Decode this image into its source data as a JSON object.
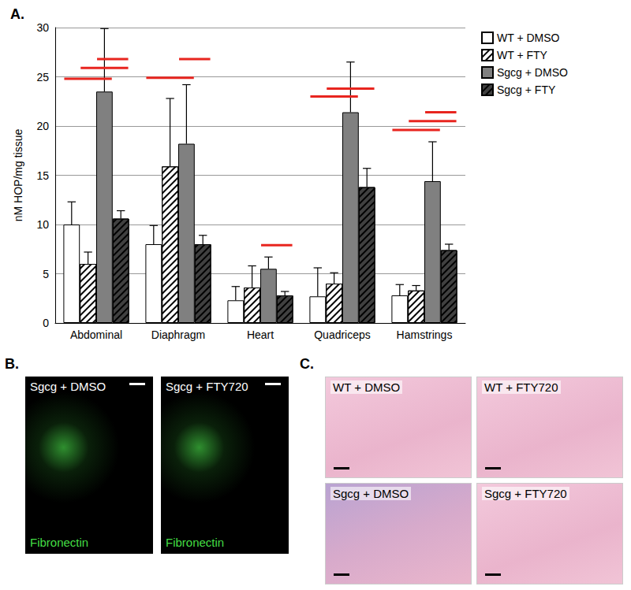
{
  "chart_data": {
    "type": "bar",
    "title": "A.",
    "ylabel": "nM HOP/mg tissue",
    "categories": [
      "Abdominal",
      "Diaphragm",
      "Heart",
      "Quadriceps",
      "Hamstrings"
    ],
    "series": [
      {
        "name": "WT + DMSO",
        "color": "#ffffff",
        "marker": "solid",
        "values": [
          10,
          8,
          2.3,
          2.7,
          2.8
        ],
        "errors": [
          2.3,
          1.9,
          1.4,
          2.9,
          1.1
        ]
      },
      {
        "name": "WT + FTY",
        "color": "#ffffff",
        "marker": "hatched",
        "values": [
          6,
          15.9,
          3.6,
          4,
          3.3
        ],
        "errors": [
          1.2,
          6.9,
          2.2,
          1.1,
          0.5
        ]
      },
      {
        "name": "Sgcg + DMSO",
        "color": "#808080",
        "marker": "solid",
        "values": [
          23.5,
          18.2,
          5.5,
          21.4,
          14.4
        ],
        "errors": [
          6.4,
          6,
          1.2,
          5.1,
          4
        ]
      },
      {
        "name": "Sgcg + FTY",
        "color": "#404040",
        "marker": "hatched",
        "values": [
          10.6,
          8,
          2.8,
          13.8,
          7.4
        ],
        "errors": [
          0.8,
          0.9,
          0.4,
          1.9,
          0.6
        ]
      }
    ],
    "ylim": [
      0,
      30
    ],
    "yticks": [
      0,
      5,
      10,
      15,
      20,
      25,
      30
    ],
    "grid": true,
    "legend": "right",
    "significance": [
      {
        "category": "Abdominal",
        "from": "WT + DMSO",
        "to": "Sgcg + DMSO",
        "y": 24.8
      },
      {
        "category": "Abdominal",
        "from": "WT + FTY",
        "to": "Sgcg + FTY",
        "y": 25.9
      },
      {
        "category": "Abdominal",
        "from": "Sgcg + DMSO",
        "to": "Sgcg + FTY",
        "y": 26.8
      },
      {
        "category": "Diaphragm",
        "from": "WT + DMSO",
        "to": "Sgcg + DMSO",
        "y": 24.9
      },
      {
        "category": "Diaphragm",
        "from": "Sgcg + DMSO",
        "to": "Sgcg + FTY",
        "y": 26.8
      },
      {
        "category": "Heart",
        "from": "Sgcg + DMSO",
        "to": "Sgcg + FTY",
        "y": 7.9
      },
      {
        "category": "Quadriceps",
        "from": "WT + DMSO",
        "to": "Sgcg + DMSO",
        "y": 23
      },
      {
        "category": "Quadriceps",
        "from": "WT + FTY",
        "to": "Sgcg + FTY",
        "y": 23.8
      },
      {
        "category": "Hamstrings",
        "from": "WT + DMSO",
        "to": "Sgcg + DMSO",
        "y": 19.6
      },
      {
        "category": "Hamstrings",
        "from": "WT + FTY",
        "to": "Sgcg + FTY",
        "y": 20.5
      },
      {
        "category": "Hamstrings",
        "from": "Sgcg + DMSO",
        "to": "Sgcg + FTY",
        "y": 21.4
      }
    ]
  },
  "panels": [
    {
      "label": "B.",
      "images": [
        {
          "title": "Sgcg + DMSO",
          "caption": "Fibronectin"
        },
        {
          "title": "Sgcg + FTY720",
          "caption": "Fibronectin"
        }
      ]
    },
    {
      "label": "C.",
      "images": [
        {
          "title": "WT + DMSO"
        },
        {
          "title": "WT + FTY720"
        },
        {
          "title": "Sgcg + DMSO"
        },
        {
          "title": "Sgcg + FTY720"
        }
      ]
    }
  ]
}
